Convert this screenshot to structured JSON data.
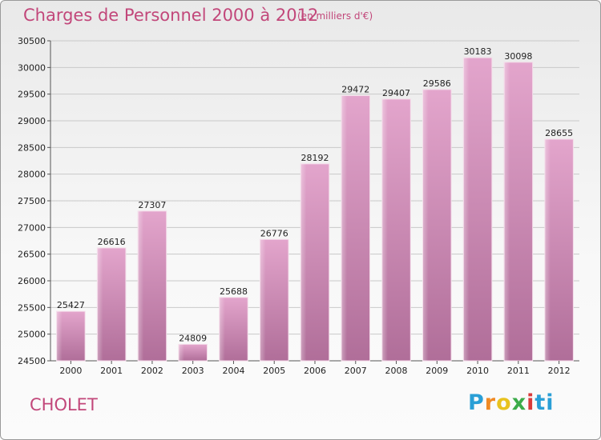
{
  "header": {
    "title": "Charges de Personnel 2000 à 2012",
    "subtitle": "(en milliers d'€)"
  },
  "footer": {
    "city": "CHOLET",
    "logo": "Proxiti",
    "logo_colors": [
      "#2a9fd6",
      "#f08a24",
      "#e8c21e",
      "#3cab4a",
      "#d93a3a",
      "#2a9fd6"
    ]
  },
  "chart_data": {
    "type": "bar",
    "title": "Charges de Personnel 2000 à 2012",
    "subtitle": "(en milliers d'€)",
    "categories": [
      "2000",
      "2001",
      "2002",
      "2003",
      "2004",
      "2005",
      "2006",
      "2007",
      "2008",
      "2009",
      "2010",
      "2011",
      "2012"
    ],
    "values": [
      25427,
      26616,
      27307,
      24809,
      25688,
      26776,
      28192,
      29472,
      29407,
      29586,
      30183,
      30098,
      28655
    ],
    "ylim": [
      24500,
      30500
    ],
    "yticks": [
      24500,
      25000,
      25500,
      26000,
      26500,
      27000,
      27500,
      28000,
      28500,
      29000,
      29500,
      30000,
      30500
    ],
    "grid": true,
    "bar_color_top": "#e3a5cc",
    "bar_color_bottom": "#b06e99"
  }
}
